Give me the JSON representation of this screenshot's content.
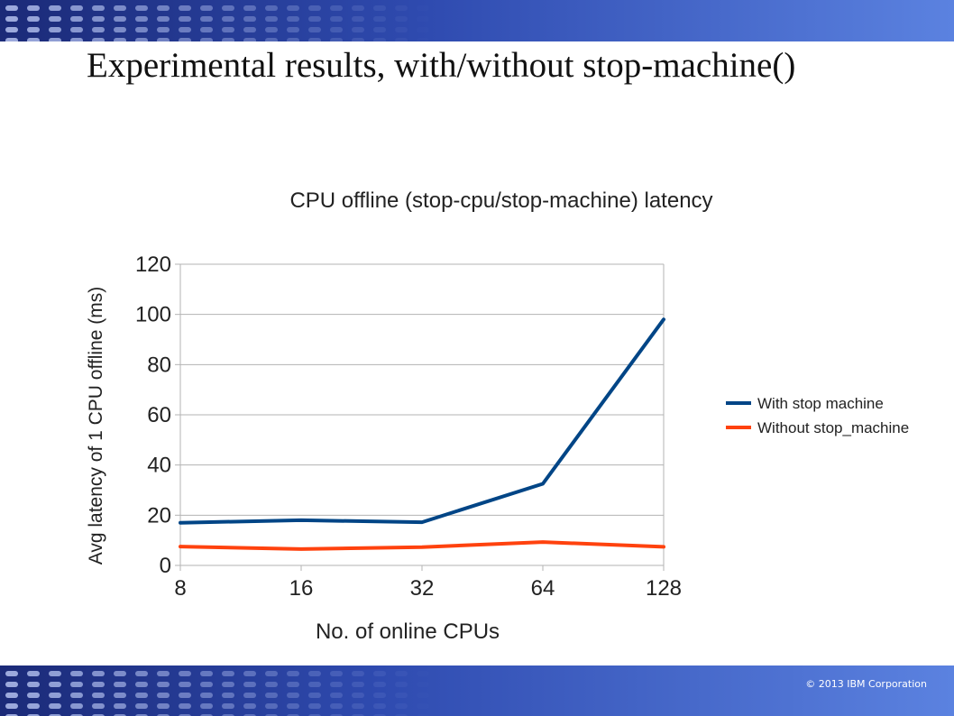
{
  "slide": {
    "title": "Experimental results, with/without stop-machine()",
    "copyright": "© 2013 IBM Corporation"
  },
  "colors": {
    "banner_dark": "#1b2a78",
    "banner_light": "#5b82e0",
    "series_with": "#004586",
    "series_without": "#ff420e",
    "grid": "#b3b3b3"
  },
  "chart_data": {
    "type": "line",
    "title": "CPU offline (stop-cpu/stop-machine) latency",
    "xlabel": "No. of online CPUs",
    "ylabel": "Avg latency of 1 CPU offline (ms)",
    "categories": [
      "8",
      "16",
      "32",
      "64",
      "128"
    ],
    "ylim": [
      0,
      120
    ],
    "yticks": [
      "0",
      "20",
      "40",
      "60",
      "80",
      "100",
      "120"
    ],
    "grid": true,
    "legend_position": "right",
    "series": [
      {
        "name": "With stop machine",
        "values": [
          17,
          18,
          17.2,
          32.5,
          98
        ]
      },
      {
        "name": "Without stop_machine",
        "values": [
          7.5,
          6.5,
          7.3,
          9.3,
          7.4
        ]
      }
    ]
  }
}
